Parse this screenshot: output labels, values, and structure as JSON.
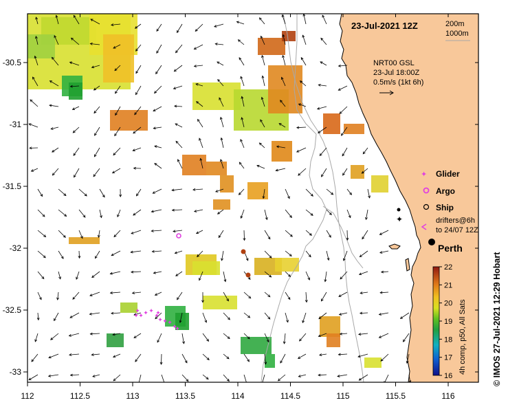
{
  "map": {
    "title": "23-Jul-2021 12Z",
    "depth_legend": [
      "200m",
      "1000m"
    ],
    "current_info": {
      "line1": "NRT00 GSL",
      "line2": "23-Jul 18:00Z",
      "line3": "0.5m/s (1kt 6h)"
    },
    "legend": {
      "glider": "Glider",
      "argo": "Argo",
      "ship": "Ship",
      "drifters_line1": "drifters@6h",
      "drifters_line2": "to 24/07 12Z"
    },
    "city": "Perth",
    "colorbar": {
      "label": "4h comp, p50, All Sats",
      "ticks": [
        "22",
        "21",
        "20",
        "19",
        "18",
        "17",
        "16"
      ]
    },
    "credit": "© IMOS 27-Jul-2021 12:29 Hobart",
    "x_ticks": [
      "112",
      "112.5",
      "113",
      "113.5",
      "114",
      "114.5",
      "115",
      "115.5",
      "116"
    ],
    "y_ticks": [
      "-30.5",
      "-31",
      "-31.5",
      "-32",
      "-32.5",
      "-33"
    ],
    "colors": {
      "land": "#f8c89a",
      "frame": "#000000",
      "argo": "#e040e0",
      "glider": "#e040e0",
      "drifter": "#c03c14"
    }
  }
}
